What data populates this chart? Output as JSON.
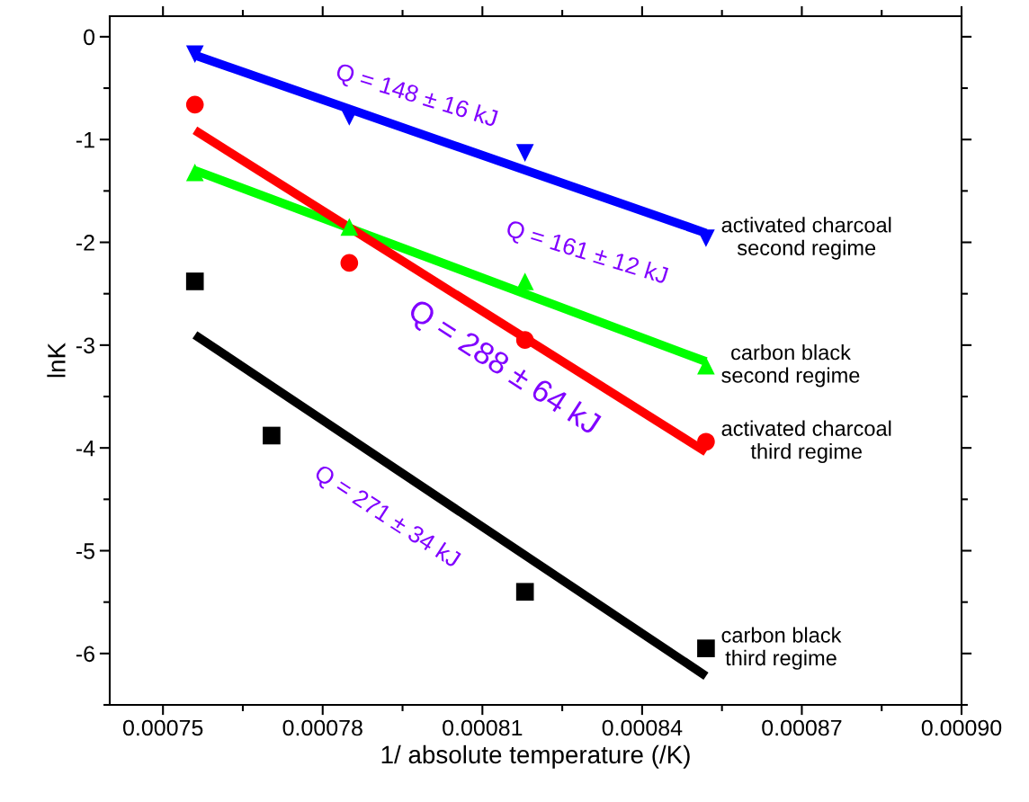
{
  "chart_data": {
    "type": "scatter",
    "xlabel": "1/ absolute temperature (/K)",
    "ylabel": "lnK",
    "xlim": [
      0.00074,
      0.0009
    ],
    "xticks": [
      {
        "value": 0.00075,
        "label": "0.00075"
      },
      {
        "value": 0.00078,
        "label": "0.00078"
      },
      {
        "value": 0.00081,
        "label": "0.00081"
      },
      {
        "value": 0.00084,
        "label": "0.00084"
      },
      {
        "value": 0.00087,
        "label": "0.00087"
      },
      {
        "value": 0.0009,
        "label": "0.00090"
      }
    ],
    "ylim": [
      -6.5,
      0.2
    ],
    "yticks": [
      -6,
      -5,
      -4,
      -3,
      -2,
      -1,
      0
    ],
    "grid": false,
    "legend": false,
    "x": [
      0.000756,
      0.000785,
      0.000818,
      0.000852
    ],
    "series": [
      {
        "name": "activated charcoal\nsecond regime",
        "color": "#0000ff",
        "marker": "triangle_down",
        "values": [
          -0.17,
          -0.78,
          -1.13,
          -1.96
        ]
      },
      {
        "name": "carbon black\nsecond regime",
        "color": "#00ff00",
        "marker": "triangle",
        "values": [
          -1.32,
          -1.85,
          -2.38,
          -3.2
        ]
      },
      {
        "name": "activated charcoal\nthird regime",
        "color": "#ff0000",
        "marker": "circle",
        "values": [
          -0.66,
          -2.2,
          -2.95,
          -3.94
        ]
      },
      {
        "name": "carbon black\nthird regime",
        "color": "#000000",
        "marker": "square",
        "x": [
          0.000756,
          0.0007704,
          0.000818,
          0.000852
        ],
        "values": [
          -2.38,
          -3.88,
          -5.4,
          -5.95
        ]
      },
      {
        "type": "line",
        "color": "#0000ff",
        "x": [
          0.000756,
          0.000852
        ],
        "values": [
          -0.18,
          -1.91
        ]
      },
      {
        "type": "line",
        "color": "#00ff00",
        "x": [
          0.000756,
          0.000852
        ],
        "values": [
          -1.3,
          -3.16
        ]
      },
      {
        "type": "line",
        "color": "#ff0000",
        "x": [
          0.000756,
          0.000852
        ],
        "values": [
          -0.91,
          -4.04
        ]
      },
      {
        "type": "line",
        "color": "#000000",
        "x": [
          0.000756,
          0.000852
        ],
        "values": [
          -2.9,
          -6.22
        ]
      }
    ],
    "annotations": [
      "Q = 148 ± 16 kJ",
      "Q = 161 ± 12 kJ",
      "Q = 288 ± 64 kJ",
      "Q = 271 ± 34 kJ"
    ]
  }
}
